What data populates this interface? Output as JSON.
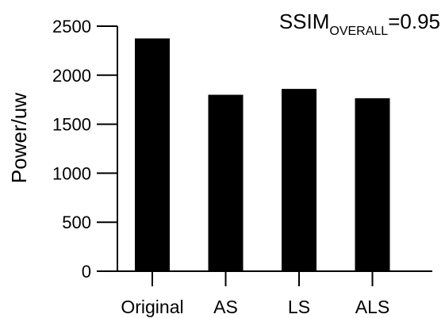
{
  "chart_data": {
    "type": "bar",
    "categories": [
      "Original",
      "AS",
      "LS",
      "ALS"
    ],
    "values": [
      2375,
      1800,
      1860,
      1765
    ],
    "ylabel": "Power/uw",
    "xlabel": "",
    "ylim": [
      0,
      2500
    ],
    "yticks": [
      0,
      500,
      1000,
      1500,
      2000,
      2500
    ],
    "bar_color": "#000000",
    "annotation": {
      "base": "SSIM",
      "subscript": "OVERALL",
      "suffix": "=0.95"
    },
    "grid": false,
    "legend": "none"
  }
}
